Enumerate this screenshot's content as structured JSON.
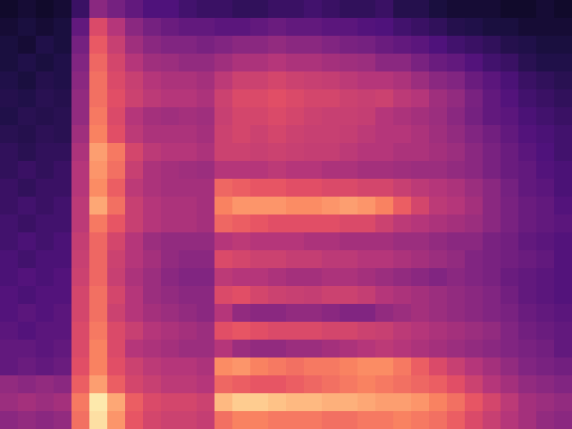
{
  "chart_data": {
    "type": "heatmap",
    "color": "magma",
    "tick_labels": false,
    "color_range": [
      0,
      1
    ],
    "cells": [
      [
        0.08,
        0.1,
        0.08,
        0.1,
        0.2,
        0.4,
        0.35,
        0.3,
        0.25,
        0.25,
        0.22,
        0.2,
        0.2,
        0.18,
        0.18,
        0.2,
        0.2,
        0.22,
        0.2,
        0.18,
        0.18,
        0.2,
        0.15,
        0.15,
        0.12,
        0.1,
        0.1,
        0.1,
        0.08,
        0.08,
        0.1,
        0.08
      ],
      [
        0.1,
        0.12,
        0.1,
        0.12,
        0.3,
        0.6,
        0.5,
        0.4,
        0.35,
        0.32,
        0.3,
        0.3,
        0.28,
        0.28,
        0.3,
        0.32,
        0.3,
        0.3,
        0.28,
        0.28,
        0.26,
        0.25,
        0.22,
        0.2,
        0.18,
        0.15,
        0.14,
        0.12,
        0.12,
        0.1,
        0.1,
        0.1
      ],
      [
        0.12,
        0.1,
        0.14,
        0.12,
        0.35,
        0.65,
        0.55,
        0.45,
        0.4,
        0.38,
        0.38,
        0.36,
        0.38,
        0.4,
        0.4,
        0.42,
        0.4,
        0.4,
        0.38,
        0.36,
        0.35,
        0.32,
        0.3,
        0.28,
        0.25,
        0.22,
        0.2,
        0.18,
        0.15,
        0.14,
        0.12,
        0.12
      ],
      [
        0.12,
        0.14,
        0.12,
        0.14,
        0.38,
        0.68,
        0.58,
        0.5,
        0.45,
        0.44,
        0.42,
        0.42,
        0.45,
        0.48,
        0.48,
        0.5,
        0.48,
        0.48,
        0.46,
        0.45,
        0.44,
        0.4,
        0.4,
        0.36,
        0.32,
        0.3,
        0.26,
        0.22,
        0.2,
        0.16,
        0.14,
        0.14
      ],
      [
        0.14,
        0.12,
        0.15,
        0.14,
        0.4,
        0.7,
        0.6,
        0.55,
        0.5,
        0.48,
        0.48,
        0.46,
        0.52,
        0.56,
        0.56,
        0.58,
        0.56,
        0.55,
        0.54,
        0.52,
        0.5,
        0.5,
        0.48,
        0.44,
        0.4,
        0.38,
        0.32,
        0.28,
        0.24,
        0.2,
        0.18,
        0.16
      ],
      [
        0.15,
        0.14,
        0.16,
        0.15,
        0.42,
        0.7,
        0.62,
        0.56,
        0.52,
        0.5,
        0.5,
        0.48,
        0.56,
        0.6,
        0.6,
        0.62,
        0.6,
        0.58,
        0.58,
        0.56,
        0.55,
        0.56,
        0.52,
        0.5,
        0.45,
        0.42,
        0.36,
        0.3,
        0.26,
        0.22,
        0.2,
        0.18
      ],
      [
        0.14,
        0.16,
        0.15,
        0.16,
        0.42,
        0.72,
        0.6,
        0.5,
        0.46,
        0.45,
        0.46,
        0.45,
        0.55,
        0.58,
        0.58,
        0.6,
        0.58,
        0.56,
        0.55,
        0.55,
        0.54,
        0.5,
        0.48,
        0.46,
        0.44,
        0.4,
        0.35,
        0.3,
        0.28,
        0.24,
        0.22,
        0.2
      ],
      [
        0.16,
        0.15,
        0.17,
        0.16,
        0.45,
        0.74,
        0.62,
        0.52,
        0.48,
        0.48,
        0.48,
        0.46,
        0.56,
        0.58,
        0.56,
        0.58,
        0.56,
        0.55,
        0.55,
        0.54,
        0.52,
        0.5,
        0.5,
        0.48,
        0.45,
        0.42,
        0.38,
        0.34,
        0.3,
        0.26,
        0.24,
        0.22
      ],
      [
        0.18,
        0.16,
        0.18,
        0.18,
        0.48,
        0.8,
        0.72,
        0.58,
        0.52,
        0.5,
        0.5,
        0.48,
        0.56,
        0.56,
        0.55,
        0.56,
        0.55,
        0.54,
        0.54,
        0.52,
        0.5,
        0.5,
        0.48,
        0.48,
        0.46,
        0.44,
        0.4,
        0.36,
        0.32,
        0.28,
        0.25,
        0.22
      ],
      [
        0.18,
        0.2,
        0.18,
        0.2,
        0.5,
        0.78,
        0.7,
        0.55,
        0.48,
        0.46,
        0.45,
        0.44,
        0.5,
        0.5,
        0.5,
        0.52,
        0.5,
        0.5,
        0.48,
        0.48,
        0.46,
        0.46,
        0.45,
        0.44,
        0.44,
        0.42,
        0.4,
        0.36,
        0.32,
        0.3,
        0.26,
        0.24
      ],
      [
        0.2,
        0.18,
        0.2,
        0.2,
        0.5,
        0.76,
        0.66,
        0.52,
        0.48,
        0.46,
        0.46,
        0.46,
        0.68,
        0.66,
        0.64,
        0.64,
        0.62,
        0.62,
        0.6,
        0.6,
        0.58,
        0.58,
        0.55,
        0.52,
        0.5,
        0.48,
        0.44,
        0.4,
        0.35,
        0.3,
        0.28,
        0.24
      ],
      [
        0.2,
        0.22,
        0.2,
        0.22,
        0.52,
        0.82,
        0.7,
        0.55,
        0.5,
        0.48,
        0.48,
        0.46,
        0.74,
        0.78,
        0.78,
        0.78,
        0.76,
        0.76,
        0.78,
        0.8,
        0.78,
        0.74,
        0.66,
        0.58,
        0.52,
        0.5,
        0.46,
        0.4,
        0.36,
        0.32,
        0.3,
        0.26
      ],
      [
        0.22,
        0.2,
        0.22,
        0.22,
        0.52,
        0.72,
        0.64,
        0.55,
        0.5,
        0.48,
        0.48,
        0.46,
        0.68,
        0.66,
        0.64,
        0.62,
        0.62,
        0.62,
        0.62,
        0.6,
        0.6,
        0.56,
        0.52,
        0.5,
        0.48,
        0.46,
        0.44,
        0.4,
        0.36,
        0.32,
        0.3,
        0.28
      ],
      [
        0.22,
        0.24,
        0.22,
        0.24,
        0.54,
        0.68,
        0.58,
        0.5,
        0.44,
        0.42,
        0.42,
        0.42,
        0.5,
        0.52,
        0.5,
        0.5,
        0.5,
        0.48,
        0.48,
        0.46,
        0.46,
        0.46,
        0.44,
        0.44,
        0.42,
        0.4,
        0.4,
        0.36,
        0.34,
        0.3,
        0.28,
        0.26
      ],
      [
        0.24,
        0.22,
        0.24,
        0.24,
        0.55,
        0.68,
        0.56,
        0.5,
        0.46,
        0.42,
        0.4,
        0.4,
        0.6,
        0.58,
        0.56,
        0.56,
        0.54,
        0.54,
        0.52,
        0.52,
        0.5,
        0.5,
        0.48,
        0.46,
        0.44,
        0.42,
        0.38,
        0.36,
        0.34,
        0.32,
        0.3,
        0.26
      ],
      [
        0.24,
        0.26,
        0.24,
        0.26,
        0.56,
        0.68,
        0.55,
        0.48,
        0.44,
        0.4,
        0.38,
        0.38,
        0.52,
        0.5,
        0.5,
        0.48,
        0.46,
        0.46,
        0.48,
        0.48,
        0.46,
        0.44,
        0.42,
        0.4,
        0.38,
        0.4,
        0.38,
        0.36,
        0.32,
        0.3,
        0.28,
        0.26
      ],
      [
        0.26,
        0.24,
        0.26,
        0.26,
        0.58,
        0.7,
        0.58,
        0.5,
        0.44,
        0.42,
        0.4,
        0.4,
        0.6,
        0.62,
        0.58,
        0.56,
        0.55,
        0.54,
        0.56,
        0.56,
        0.54,
        0.5,
        0.48,
        0.46,
        0.44,
        0.42,
        0.4,
        0.38,
        0.34,
        0.3,
        0.28,
        0.26
      ],
      [
        0.26,
        0.28,
        0.26,
        0.28,
        0.58,
        0.7,
        0.56,
        0.5,
        0.46,
        0.44,
        0.42,
        0.4,
        0.5,
        0.42,
        0.4,
        0.4,
        0.42,
        0.42,
        0.4,
        0.38,
        0.38,
        0.42,
        0.44,
        0.46,
        0.44,
        0.42,
        0.4,
        0.38,
        0.36,
        0.32,
        0.3,
        0.28
      ],
      [
        0.28,
        0.26,
        0.28,
        0.28,
        0.6,
        0.72,
        0.6,
        0.55,
        0.5,
        0.48,
        0.46,
        0.44,
        0.62,
        0.64,
        0.62,
        0.6,
        0.6,
        0.6,
        0.58,
        0.58,
        0.56,
        0.55,
        0.52,
        0.5,
        0.48,
        0.46,
        0.44,
        0.42,
        0.38,
        0.34,
        0.32,
        0.3
      ],
      [
        0.3,
        0.3,
        0.28,
        0.3,
        0.6,
        0.74,
        0.6,
        0.5,
        0.48,
        0.46,
        0.44,
        0.44,
        0.5,
        0.44,
        0.42,
        0.42,
        0.44,
        0.44,
        0.46,
        0.48,
        0.5,
        0.52,
        0.5,
        0.48,
        0.46,
        0.44,
        0.42,
        0.4,
        0.38,
        0.36,
        0.34,
        0.3
      ],
      [
        0.3,
        0.32,
        0.3,
        0.32,
        0.62,
        0.74,
        0.62,
        0.56,
        0.52,
        0.5,
        0.5,
        0.48,
        0.76,
        0.78,
        0.74,
        0.72,
        0.7,
        0.72,
        0.72,
        0.74,
        0.76,
        0.76,
        0.72,
        0.66,
        0.6,
        0.55,
        0.5,
        0.46,
        0.42,
        0.38,
        0.36,
        0.34
      ],
      [
        0.42,
        0.4,
        0.42,
        0.4,
        0.66,
        0.8,
        0.66,
        0.58,
        0.55,
        0.52,
        0.52,
        0.5,
        0.68,
        0.66,
        0.64,
        0.64,
        0.66,
        0.68,
        0.7,
        0.72,
        0.74,
        0.72,
        0.7,
        0.68,
        0.66,
        0.62,
        0.56,
        0.5,
        0.46,
        0.42,
        0.4,
        0.38
      ],
      [
        0.44,
        0.46,
        0.44,
        0.46,
        0.72,
        0.96,
        0.82,
        0.66,
        0.6,
        0.58,
        0.58,
        0.56,
        0.86,
        0.9,
        0.9,
        0.88,
        0.86,
        0.86,
        0.84,
        0.84,
        0.82,
        0.8,
        0.8,
        0.78,
        0.74,
        0.7,
        0.64,
        0.58,
        0.52,
        0.46,
        0.44,
        0.42
      ],
      [
        0.4,
        0.42,
        0.4,
        0.42,
        0.7,
        0.94,
        0.78,
        0.64,
        0.58,
        0.56,
        0.56,
        0.54,
        0.7,
        0.74,
        0.74,
        0.72,
        0.72,
        0.72,
        0.7,
        0.7,
        0.72,
        0.72,
        0.74,
        0.72,
        0.7,
        0.66,
        0.6,
        0.55,
        0.5,
        0.46,
        0.42,
        0.4
      ]
    ]
  }
}
